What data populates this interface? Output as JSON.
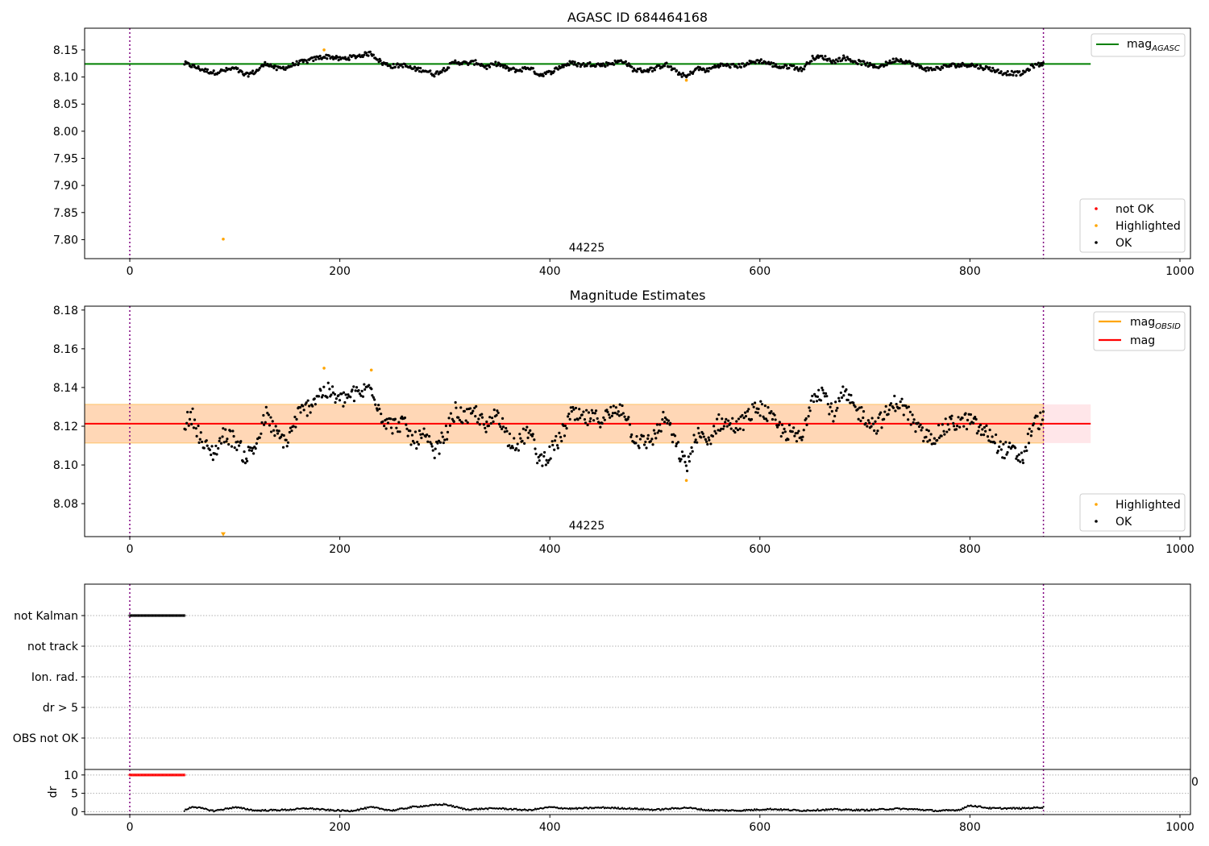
{
  "chart_data": [
    {
      "type": "scatter",
      "title": "AGASC ID 684464168",
      "annotation": "44225",
      "xlim": [
        -43,
        1010
      ],
      "ylim": [
        7.765,
        8.19
      ],
      "xticks": [
        0,
        200,
        400,
        600,
        800,
        1000
      ],
      "yticks": [
        7.8,
        7.85,
        7.9,
        7.95,
        8.0,
        8.05,
        8.1,
        8.15
      ],
      "ytick_labels": [
        "7.80",
        "7.85",
        "7.90",
        "7.95",
        "8.00",
        "8.05",
        "8.10",
        "8.15"
      ],
      "vlines": [
        0,
        870
      ],
      "reference_line": {
        "name": "mag_AGASC",
        "label": "mag",
        "subscript": "AGASC",
        "value": 8.124,
        "x_range": [
          -43,
          915
        ],
        "color": "#008000"
      },
      "legend_lines": [
        {
          "label": "mag",
          "subscript": "AGASC",
          "color": "#008000"
        }
      ],
      "legend_points": [
        {
          "label": "not OK",
          "color": "#ff0000"
        },
        {
          "label": "Highlighted",
          "color": "#ffa500"
        },
        {
          "label": "OK",
          "color": "#000000"
        }
      ],
      "series": [
        {
          "name": "not OK",
          "color": "#ff0000",
          "points": []
        },
        {
          "name": "Highlighted",
          "color": "#ffa500",
          "points": [
            [
              89,
              7.801
            ],
            [
              185,
              8.15
            ],
            [
              530,
              8.094
            ]
          ]
        },
        {
          "name": "OK",
          "color": "#000000",
          "segments": [
            [
              52,
              8.125
            ],
            [
              60,
              8.12
            ],
            [
              70,
              8.113
            ],
            [
              80,
              8.108
            ],
            [
              90,
              8.112
            ],
            [
              100,
              8.116
            ],
            [
              110,
              8.103
            ],
            [
              120,
              8.11
            ],
            [
              130,
              8.126
            ],
            [
              140,
              8.115
            ],
            [
              150,
              8.118
            ],
            [
              160,
              8.126
            ],
            [
              170,
              8.13
            ],
            [
              180,
              8.136
            ],
            [
              190,
              8.138
            ],
            [
              200,
              8.133
            ],
            [
              210,
              8.136
            ],
            [
              220,
              8.14
            ],
            [
              230,
              8.144
            ],
            [
              240,
              8.126
            ],
            [
              250,
              8.12
            ],
            [
              260,
              8.122
            ],
            [
              270,
              8.115
            ],
            [
              280,
              8.113
            ],
            [
              290,
              8.105
            ],
            [
              300,
              8.115
            ],
            [
              310,
              8.128
            ],
            [
              320,
              8.125
            ],
            [
              330,
              8.127
            ],
            [
              340,
              8.118
            ],
            [
              350,
              8.125
            ],
            [
              360,
              8.115
            ],
            [
              370,
              8.112
            ],
            [
              380,
              8.118
            ],
            [
              390,
              8.104
            ],
            [
              400,
              8.108
            ],
            [
              410,
              8.119
            ],
            [
              420,
              8.126
            ],
            [
              430,
              8.122
            ],
            [
              440,
              8.124
            ],
            [
              450,
              8.122
            ],
            [
              460,
              8.126
            ],
            [
              470,
              8.13
            ],
            [
              480,
              8.113
            ],
            [
              490,
              8.112
            ],
            [
              500,
              8.115
            ],
            [
              510,
              8.124
            ],
            [
              520,
              8.11
            ],
            [
              530,
              8.1
            ],
            [
              540,
              8.116
            ],
            [
              550,
              8.112
            ],
            [
              560,
              8.122
            ],
            [
              570,
              8.121
            ],
            [
              580,
              8.12
            ],
            [
              590,
              8.126
            ],
            [
              600,
              8.13
            ],
            [
              610,
              8.124
            ],
            [
              620,
              8.118
            ],
            [
              630,
              8.12
            ],
            [
              640,
              8.113
            ],
            [
              650,
              8.135
            ],
            [
              660,
              8.137
            ],
            [
              670,
              8.128
            ],
            [
              680,
              8.136
            ],
            [
              690,
              8.129
            ],
            [
              700,
              8.125
            ],
            [
              710,
              8.118
            ],
            [
              720,
              8.124
            ],
            [
              730,
              8.133
            ],
            [
              740,
              8.128
            ],
            [
              750,
              8.12
            ],
            [
              760,
              8.114
            ],
            [
              770,
              8.116
            ],
            [
              780,
              8.121
            ],
            [
              790,
              8.122
            ],
            [
              800,
              8.123
            ],
            [
              810,
              8.118
            ],
            [
              820,
              8.115
            ],
            [
              830,
              8.108
            ],
            [
              840,
              8.107
            ],
            [
              850,
              8.106
            ],
            [
              860,
              8.121
            ],
            [
              870,
              8.124
            ]
          ]
        }
      ]
    },
    {
      "type": "scatter",
      "title": "Magnitude Estimates",
      "annotation": "44225",
      "xlim": [
        -43,
        1010
      ],
      "ylim": [
        8.063,
        8.182
      ],
      "xticks": [
        0,
        200,
        400,
        600,
        800,
        1000
      ],
      "yticks": [
        8.08,
        8.1,
        8.12,
        8.14,
        8.16,
        8.18
      ],
      "ytick_labels": [
        "8.08",
        "8.10",
        "8.12",
        "8.14",
        "8.16",
        "8.18"
      ],
      "vlines": [
        0,
        870
      ],
      "bands": [
        {
          "name": "mag range",
          "y_range": [
            8.1113,
            8.1313
          ],
          "x_range": [
            -43,
            915
          ],
          "color": "#ffb6c1"
        },
        {
          "name": "mag_OBSID range",
          "y_range": [
            8.1113,
            8.1313
          ],
          "x_range": [
            -43,
            870
          ],
          "color": "#ffa500"
        }
      ],
      "reference_lines": [
        {
          "name": "mag",
          "value": 8.1213,
          "x_range": [
            -43,
            915
          ],
          "color": "#ff0000"
        }
      ],
      "legend_lines": [
        {
          "label": "mag",
          "subscript": "OBSID",
          "color": "#ffa500"
        },
        {
          "label": "mag",
          "subscript": "",
          "color": "#ff0000"
        }
      ],
      "legend_points": [
        {
          "label": "Highlighted",
          "color": "#ffa500"
        },
        {
          "label": "OK",
          "color": "#000000"
        }
      ],
      "series": [
        {
          "name": "Highlighted",
          "color": "#ffa500",
          "points": [
            [
              89,
              8.064
            ],
            [
              185,
              8.15
            ],
            [
              230,
              8.149
            ],
            [
              530,
              8.092
            ]
          ]
        },
        {
          "name": "OK",
          "color": "#000000",
          "segments": [
            [
              52,
              8.122
            ],
            [
              60,
              8.125
            ],
            [
              70,
              8.11
            ],
            [
              80,
              8.106
            ],
            [
              90,
              8.116
            ],
            [
              100,
              8.113
            ],
            [
              110,
              8.104
            ],
            [
              120,
              8.11
            ],
            [
              130,
              8.126
            ],
            [
              140,
              8.115
            ],
            [
              150,
              8.112
            ],
            [
              160,
              8.126
            ],
            [
              170,
              8.13
            ],
            [
              180,
              8.137
            ],
            [
              190,
              8.138
            ],
            [
              200,
              8.133
            ],
            [
              210,
              8.136
            ],
            [
              220,
              8.137
            ],
            [
              230,
              8.141
            ],
            [
              240,
              8.125
            ],
            [
              250,
              8.12
            ],
            [
              260,
              8.122
            ],
            [
              270,
              8.112
            ],
            [
              280,
              8.115
            ],
            [
              290,
              8.106
            ],
            [
              300,
              8.115
            ],
            [
              310,
              8.128
            ],
            [
              320,
              8.124
            ],
            [
              330,
              8.127
            ],
            [
              340,
              8.118
            ],
            [
              350,
              8.128
            ],
            [
              360,
              8.114
            ],
            [
              370,
              8.111
            ],
            [
              380,
              8.118
            ],
            [
              390,
              8.102
            ],
            [
              400,
              8.106
            ],
            [
              410,
              8.114
            ],
            [
              420,
              8.126
            ],
            [
              430,
              8.124
            ],
            [
              440,
              8.124
            ],
            [
              450,
              8.124
            ],
            [
              460,
              8.127
            ],
            [
              470,
              8.13
            ],
            [
              480,
              8.114
            ],
            [
              490,
              8.111
            ],
            [
              500,
              8.115
            ],
            [
              510,
              8.125
            ],
            [
              520,
              8.11
            ],
            [
              530,
              8.099
            ],
            [
              540,
              8.116
            ],
            [
              550,
              8.111
            ],
            [
              560,
              8.122
            ],
            [
              570,
              8.121
            ],
            [
              580,
              8.12
            ],
            [
              590,
              8.126
            ],
            [
              600,
              8.13
            ],
            [
              610,
              8.124
            ],
            [
              620,
              8.118
            ],
            [
              630,
              8.116
            ],
            [
              640,
              8.113
            ],
            [
              650,
              8.137
            ],
            [
              660,
              8.138
            ],
            [
              670,
              8.126
            ],
            [
              680,
              8.137
            ],
            [
              690,
              8.129
            ],
            [
              700,
              8.125
            ],
            [
              710,
              8.12
            ],
            [
              720,
              8.126
            ],
            [
              730,
              8.133
            ],
            [
              740,
              8.128
            ],
            [
              750,
              8.118
            ],
            [
              760,
              8.114
            ],
            [
              770,
              8.116
            ],
            [
              780,
              8.121
            ],
            [
              790,
              8.122
            ],
            [
              800,
              8.123
            ],
            [
              810,
              8.118
            ],
            [
              820,
              8.115
            ],
            [
              830,
              8.108
            ],
            [
              840,
              8.107
            ],
            [
              850,
              8.103
            ],
            [
              860,
              8.121
            ],
            [
              870,
              8.124
            ]
          ]
        }
      ]
    },
    {
      "type": "scatter",
      "title": "",
      "xlim": [
        -43,
        1010
      ],
      "vlines": [
        0,
        870
      ],
      "categories": [
        "not Kalman",
        "not track",
        "Ion. rad.",
        "dr > 5",
        "OBS not OK"
      ],
      "flag_series": [
        {
          "name": "not Kalman",
          "color": "#000000",
          "x_range": [
            0,
            52
          ],
          "step": 1
        }
      ]
    },
    {
      "type": "scatter",
      "title": "",
      "ylabel": "dr",
      "xlim": [
        -43,
        1010
      ],
      "ylim": [
        -0.8,
        11.5
      ],
      "xticks": [
        0,
        200,
        400,
        600,
        800,
        1000
      ],
      "yticks": [
        0,
        5,
        10
      ],
      "ytick_labels": [
        "0",
        "5",
        "10"
      ],
      "clipped_tick_label": "0",
      "vlines": [
        0,
        870
      ],
      "series": [
        {
          "name": "dr (capped)",
          "color": "#ff0000",
          "x_range": [
            0,
            52
          ],
          "value": 10
        },
        {
          "name": "dr",
          "color": "#000000",
          "segments": [
            [
              52,
              0.3
            ],
            [
              60,
              1.4
            ],
            [
              80,
              0.2
            ],
            [
              100,
              1.2
            ],
            [
              120,
              0.3
            ],
            [
              150,
              0.5
            ],
            [
              170,
              0.9
            ],
            [
              190,
              0.4
            ],
            [
              210,
              0.2
            ],
            [
              230,
              1.2
            ],
            [
              250,
              0.3
            ],
            [
              270,
              1.3
            ],
            [
              300,
              2.0
            ],
            [
              320,
              0.6
            ],
            [
              350,
              0.9
            ],
            [
              380,
              0.4
            ],
            [
              400,
              1.2
            ],
            [
              420,
              0.8
            ],
            [
              450,
              1.1
            ],
            [
              480,
              0.8
            ],
            [
              500,
              0.5
            ],
            [
              530,
              1.1
            ],
            [
              550,
              0.4
            ],
            [
              580,
              0.3
            ],
            [
              610,
              0.7
            ],
            [
              640,
              0.3
            ],
            [
              670,
              0.6
            ],
            [
              700,
              0.4
            ],
            [
              730,
              0.8
            ],
            [
              750,
              0.6
            ],
            [
              770,
              0.2
            ],
            [
              790,
              0.5
            ],
            [
              800,
              1.7
            ],
            [
              820,
              0.9
            ],
            [
              850,
              0.9
            ],
            [
              870,
              1.2
            ]
          ]
        }
      ]
    }
  ]
}
